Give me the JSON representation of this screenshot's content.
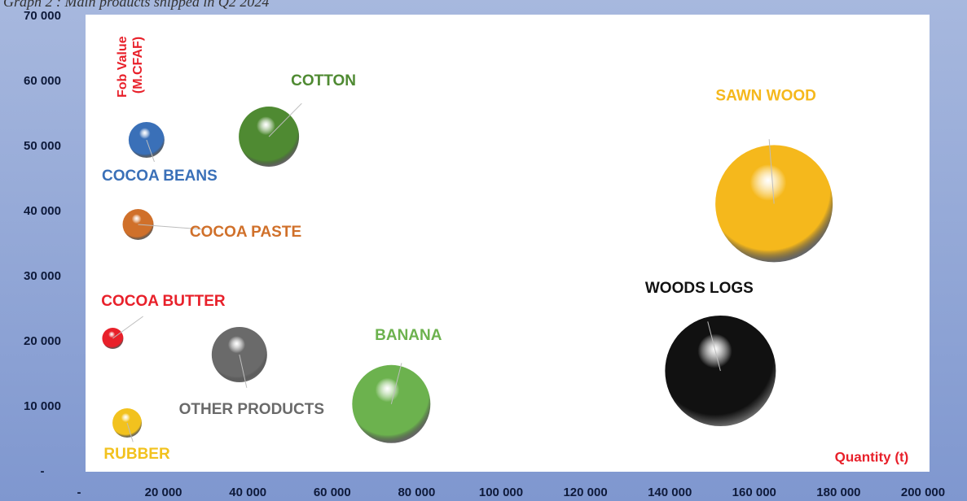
{
  "chart_data": {
    "type": "bubble",
    "title": "Graph 2 : Main products shipped in Q2 2024",
    "ylabel": [
      "Fob Value",
      "(M.CFAF)"
    ],
    "xlabel": "Quantity (t)",
    "xlim": [
      0,
      200000
    ],
    "ylim": [
      0,
      70000
    ],
    "xticks": [
      {
        "value": 0,
        "label": "-"
      },
      {
        "value": 20000,
        "label": "20 000"
      },
      {
        "value": 40000,
        "label": "40 000"
      },
      {
        "value": 60000,
        "label": "60 000"
      },
      {
        "value": 80000,
        "label": "80 000"
      },
      {
        "value": 100000,
        "label": "100 000"
      },
      {
        "value": 120000,
        "label": "120 000"
      },
      {
        "value": 140000,
        "label": "140 000"
      },
      {
        "value": 160000,
        "label": "160 000"
      },
      {
        "value": 180000,
        "label": "180 000"
      },
      {
        "value": 200000,
        "label": "200 000"
      }
    ],
    "yticks": [
      {
        "value": 0,
        "label": "-"
      },
      {
        "value": 10000,
        "label": "10 000"
      },
      {
        "value": 20000,
        "label": "20 000"
      },
      {
        "value": 30000,
        "label": "30 000"
      },
      {
        "value": 40000,
        "label": "40 000"
      },
      {
        "value": 50000,
        "label": "50 000"
      },
      {
        "value": 60000,
        "label": "60 000"
      },
      {
        "value": 70000,
        "label": "70 000"
      }
    ],
    "points": [
      {
        "name": "COCOA BEANS",
        "x": 16000,
        "y": 51000,
        "size": 484,
        "color": "#3a70b8"
      },
      {
        "name": "COTTON",
        "x": 45000,
        "y": 51500,
        "size": 1369,
        "color": "#4f8a32"
      },
      {
        "name": "COCOA PASTE",
        "x": 14000,
        "y": 38000,
        "size": 361,
        "color": "#d0702a"
      },
      {
        "name": "COCOA BUTTER",
        "x": 8000,
        "y": 20500,
        "size": 169,
        "color": "#e8202a"
      },
      {
        "name": "OTHER PRODUCTS",
        "x": 38000,
        "y": 18000,
        "size": 1156,
        "color": "#6a6a6a"
      },
      {
        "name": "RUBBER",
        "x": 11400,
        "y": 7500,
        "size": 324,
        "color": "#f2c21e"
      },
      {
        "name": "BANANA",
        "x": 74000,
        "y": 10400,
        "size": 2304,
        "color": "#6cb24e"
      },
      {
        "name": "SAWN WOOD",
        "x": 164700,
        "y": 41200,
        "size": 5184,
        "color": "#f5b81c"
      },
      {
        "name": "WOODS LOGS",
        "x": 152000,
        "y": 15500,
        "size": 4624,
        "color": "#111111"
      }
    ]
  }
}
